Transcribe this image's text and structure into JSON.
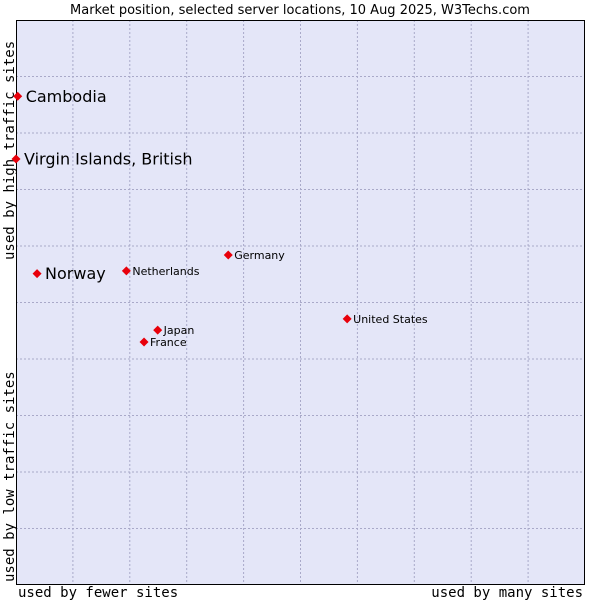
{
  "chart_data": {
    "type": "scatter",
    "title": "Market position, selected server locations, 10 Aug 2025, W3Techs.com",
    "xlabel_left": "used by fewer sites",
    "xlabel_right": "used by many sites",
    "ylabel_bottom": "used by low traffic sites",
    "ylabel_top": "used by high traffic sites",
    "xlim": [
      0,
      100
    ],
    "ylim": [
      0,
      100
    ],
    "grid": true,
    "points": [
      {
        "name": "Cambodia",
        "x": 0.3,
        "y": 86.5,
        "label_size": "large"
      },
      {
        "name": "Virgin Islands, British",
        "x": 0,
        "y": 75.4,
        "label_size": "large"
      },
      {
        "name": "Germany",
        "x": 37.3,
        "y": 58.4,
        "label_size": "small"
      },
      {
        "name": "Netherlands",
        "x": 19.4,
        "y": 55.6,
        "label_size": "small"
      },
      {
        "name": "Norway",
        "x": 3.7,
        "y": 55.1,
        "label_size": "large"
      },
      {
        "name": "United States",
        "x": 58.2,
        "y": 47.1,
        "label_size": "small"
      },
      {
        "name": "Japan",
        "x": 24.9,
        "y": 45.1,
        "label_size": "small"
      },
      {
        "name": "France",
        "x": 22.5,
        "y": 43.0,
        "label_size": "small"
      }
    ]
  },
  "colors": {
    "plot_background": "#e4e6f8",
    "grid": "#a9a9c9",
    "marker": "#e8000b",
    "border": "#000000"
  }
}
